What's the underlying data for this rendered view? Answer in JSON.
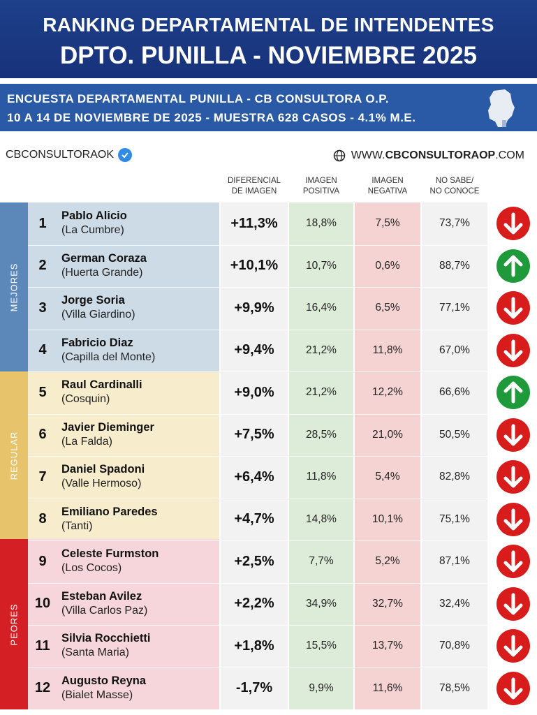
{
  "header": {
    "title_line1": "RANKING DEPARTAMENTAL DE INTENDENTES",
    "title_line2": "DPTO. PUNILLA - NOVIEMBRE 2025"
  },
  "subheader": {
    "line1": "ENCUESTA DEPARTAMENTAL PUNILLA - CB CONSULTORA O.P.",
    "line2": "10 A 14 DE NOVIEMBRE  DE 2025 - MUESTRA 628 CASOS - 4.1% M.E."
  },
  "brand": {
    "handle": "CBCONSULTORAOK",
    "website_prefix": "WWW.",
    "website_main": "CBCONSULTORAOP",
    "website_suffix": ".COM"
  },
  "columns": {
    "diferencial": [
      "DIFERENCIAL",
      "DE IMAGEN"
    ],
    "positiva": [
      "IMAGEN",
      "POSITIVA"
    ],
    "negativa": [
      "IMAGEN",
      "NEGATIVA"
    ],
    "nosabe": [
      "NO SABE/",
      "NO CONOCE"
    ]
  },
  "groups": {
    "mejores": "MEJORES",
    "regular": "REGULAR",
    "peores": "PEORES"
  },
  "colors": {
    "header_bg": "#1e3f8a",
    "subheader_bg": "#2a5aa6",
    "mejores": "#5b88b8",
    "regular": "#e7c46c",
    "peores": "#d41f24",
    "arrow_down": "#d81b1b",
    "arrow_up": "#1f9a3a"
  },
  "rows": [
    {
      "rank": "1",
      "name": "Pablo Alicio",
      "place": "(La Cumbre)",
      "dif": "+11,3%",
      "pos": "18,8%",
      "neg": "7,5%",
      "ns": "73,7%",
      "trend": "down"
    },
    {
      "rank": "2",
      "name": "German Coraza",
      "place": "(Huerta Grande)",
      "dif": "+10,1%",
      "pos": "10,7%",
      "neg": "0,6%",
      "ns": "88,7%",
      "trend": "up"
    },
    {
      "rank": "3",
      "name": "Jorge Soria",
      "place": "(Villa Giardino)",
      "dif": "+9,9%",
      "pos": "16,4%",
      "neg": "6,5%",
      "ns": "77,1%",
      "trend": "down"
    },
    {
      "rank": "4",
      "name": "Fabricio Diaz",
      "place": "(Capilla del Monte)",
      "dif": "+9,4%",
      "pos": "21,2%",
      "neg": "11,8%",
      "ns": "67,0%",
      "trend": "down"
    },
    {
      "rank": "5",
      "name": "Raul Cardinalli",
      "place": "(Cosquin)",
      "dif": "+9,0%",
      "pos": "21,2%",
      "neg": "12,2%",
      "ns": "66,6%",
      "trend": "up"
    },
    {
      "rank": "6",
      "name": "Javier Dieminger",
      "place": "(La Falda)",
      "dif": "+7,5%",
      "pos": "28,5%",
      "neg": "21,0%",
      "ns": "50,5%",
      "trend": "down"
    },
    {
      "rank": "7",
      "name": "Daniel Spadoni",
      "place": "(Valle Hermoso)",
      "dif": "+6,4%",
      "pos": "11,8%",
      "neg": "5,4%",
      "ns": "82,8%",
      "trend": "down"
    },
    {
      "rank": "8",
      "name": "Emiliano Paredes",
      "place": "(Tanti)",
      "dif": "+4,7%",
      "pos": "14,8%",
      "neg": "10,1%",
      "ns": "75,1%",
      "trend": "down"
    },
    {
      "rank": "9",
      "name": "Celeste Furmston",
      "place": "(Los Cocos)",
      "dif": "+2,5%",
      "pos": "7,7%",
      "neg": "5,2%",
      "ns": "87,1%",
      "trend": "down"
    },
    {
      "rank": "10",
      "name": "Esteban Avilez",
      "place": "(Villa Carlos Paz)",
      "dif": "+2,2%",
      "pos": "34,9%",
      "neg": "32,7%",
      "ns": "32,4%",
      "trend": "down"
    },
    {
      "rank": "11",
      "name": "Silvia Rocchietti",
      "place": "(Santa Maria)",
      "dif": "+1,8%",
      "pos": "15,5%",
      "neg": "13,7%",
      "ns": "70,8%",
      "trend": "down"
    },
    {
      "rank": "12",
      "name": "Augusto Reyna",
      "place": "(Bialet Masse)",
      "dif": "-1,7%",
      "pos": "9,9%",
      "neg": "11,6%",
      "ns": "78,5%",
      "trend": "down"
    }
  ]
}
